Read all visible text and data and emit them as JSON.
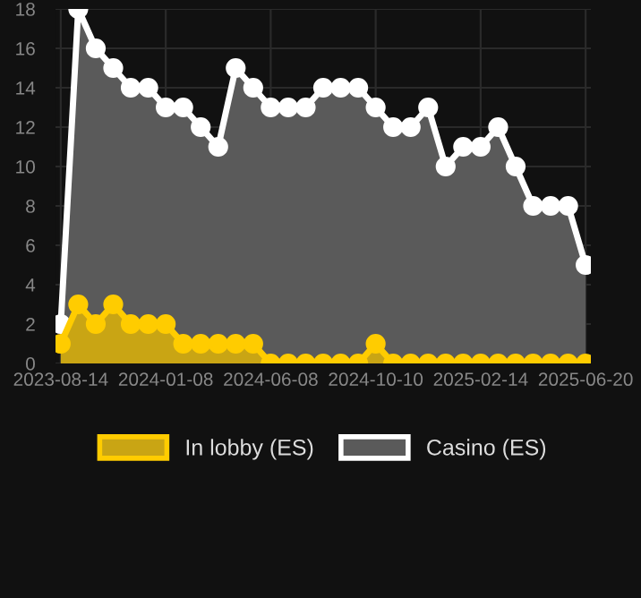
{
  "chart_data": {
    "type": "area",
    "categories": [
      "2023-08-14",
      null,
      null,
      null,
      null,
      null,
      "2024-01-08",
      null,
      null,
      null,
      null,
      null,
      "2024-06-08",
      null,
      null,
      null,
      null,
      null,
      "2024-10-10",
      null,
      null,
      null,
      null,
      null,
      "2025-02-14",
      null,
      null,
      null,
      null,
      null,
      "2025-06-20"
    ],
    "series": [
      {
        "name": "In lobby (ES)",
        "color": "#ffcc00",
        "values": [
          1,
          3,
          2,
          3,
          2,
          2,
          2,
          1,
          1,
          1,
          1,
          1,
          0,
          0,
          0,
          0,
          0,
          0,
          1,
          0,
          0,
          0,
          0,
          0,
          0,
          0,
          0,
          0,
          0,
          0,
          0
        ]
      },
      {
        "name": "Casino (ES)",
        "color": "#ffffff",
        "values": [
          2,
          18,
          16,
          15,
          14,
          14,
          13,
          13,
          12,
          11,
          15,
          14,
          13,
          13,
          13,
          14,
          14,
          14,
          13,
          12,
          12,
          13,
          10,
          11,
          11,
          12,
          10,
          8,
          8,
          8,
          5
        ]
      }
    ],
    "ylim": [
      0,
      18
    ],
    "yticks": [
      0,
      2,
      4,
      6,
      8,
      10,
      12,
      14,
      16,
      18
    ],
    "grid": true,
    "legend": "bottom",
    "marker": "circle",
    "line_style": "solid"
  }
}
